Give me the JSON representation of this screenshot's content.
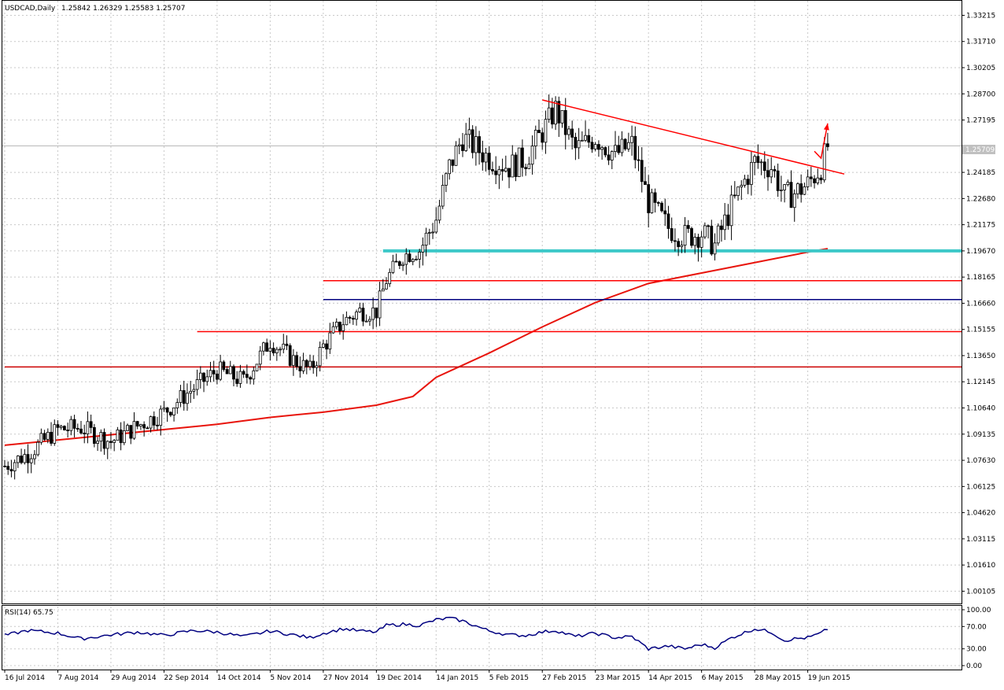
{
  "header": {
    "symbol": "USDCAD,Daily",
    "ohlc": "1.25842 1.26329 1.25583 1.25707"
  },
  "rsi_header": "RSI(14) 65.75",
  "current_price_label": "1.25709",
  "colors": {
    "background": "#ffffff",
    "candle_body": "#000000",
    "ma": "#e8140c",
    "trendline": "#ff0000",
    "support_cyan": "#3cc8c8",
    "level_blue": "#000080",
    "rsi_line": "#000080",
    "grid": "#c8c8c8"
  },
  "chart_data": [
    {
      "type": "candlestick",
      "title": "USDCAD,Daily",
      "y_ticks": [
        "1.33215",
        "1.31710",
        "1.30205",
        "1.28700",
        "1.27195",
        "1.25709",
        "1.24185",
        "1.22680",
        "1.21175",
        "1.19670",
        "1.18165",
        "1.16660",
        "1.15155",
        "1.13650",
        "1.12145",
        "1.10640",
        "1.09135",
        "1.07630",
        "1.06125",
        "1.04620",
        "1.03115",
        "1.01610",
        "1.00105"
      ],
      "x_ticks": [
        "16 Jul 2014",
        "7 Aug 2014",
        "29 Aug 2014",
        "22 Sep 2014",
        "14 Oct 2014",
        "5 Nov 2014",
        "27 Nov 2014",
        "19 Dec 2014",
        "14 Jan 2015",
        "5 Feb 2015",
        "27 Feb 2015",
        "23 Mar 2015",
        "14 Apr 2015",
        "6 May 2015",
        "28 May 2015",
        "19 Jun 2015"
      ],
      "ylim": [
        0.994,
        1.3405
      ],
      "close_path": [
        [
          "16 Jul 2014",
          1.073
        ],
        [
          "25 Jul 2014",
          1.08
        ],
        [
          "7 Aug 2014",
          1.094
        ],
        [
          "18 Aug 2014",
          1.095
        ],
        [
          "29 Aug 2014",
          1.087
        ],
        [
          "10 Sep 2014",
          1.096
        ],
        [
          "22 Sep 2014",
          1.104
        ],
        [
          "3 Oct 2014",
          1.118
        ],
        [
          "14 Oct 2014",
          1.128
        ],
        [
          "24 Oct 2014",
          1.122
        ],
        [
          "5 Nov 2014",
          1.145
        ],
        [
          "14 Nov 2014",
          1.134
        ],
        [
          "21 Nov 2014",
          1.128
        ],
        [
          "27 Nov 2014",
          1.142
        ],
        [
          "5 Dec 2014",
          1.156
        ],
        [
          "12 Dec 2014",
          1.162
        ],
        [
          "19 Dec 2014",
          1.162
        ],
        [
          "24 Dec 2014",
          1.18
        ],
        [
          "31 Dec 2014",
          1.194
        ],
        [
          "7 Jan 2015",
          1.197
        ],
        [
          "14 Jan 2015",
          1.215
        ],
        [
          "20 Jan 2015",
          1.245
        ],
        [
          "26 Jan 2015",
          1.262
        ],
        [
          "5 Feb 2015",
          1.25
        ],
        [
          "13 Feb 2015",
          1.245
        ],
        [
          "20 Feb 2015",
          1.25
        ],
        [
          "27 Feb 2015",
          1.265
        ],
        [
          "5 Mar 2015",
          1.278
        ],
        [
          "13 Mar 2015",
          1.255
        ],
        [
          "23 Mar 2015",
          1.262
        ],
        [
          "31 Mar 2015",
          1.252
        ],
        [
          "7 Apr 2015",
          1.258
        ],
        [
          "14 Apr 2015",
          1.225
        ],
        [
          "22 Apr 2015",
          1.21
        ],
        [
          "29 Apr 2015",
          1.205
        ],
        [
          "6 May 2015",
          1.207
        ],
        [
          "12 May 2015",
          1.2
        ],
        [
          "19 May 2015",
          1.222
        ],
        [
          "28 May 2015",
          1.248
        ],
        [
          "4 Jun 2015",
          1.245
        ],
        [
          "10 Jun 2015",
          1.228
        ],
        [
          "15 Jun 2015",
          1.23
        ],
        [
          "19 Jun 2015",
          1.235
        ],
        [
          "25 Jun 2015",
          1.245
        ],
        [
          "29 Jun 2015",
          1.257
        ]
      ],
      "ma_path": [
        [
          "16 Jul 2014",
          1.085
        ],
        [
          "14 Oct 2014",
          1.097
        ],
        [
          "5 Nov 2014",
          1.101
        ],
        [
          "27 Nov 2014",
          1.104
        ],
        [
          "19 Dec 2014",
          1.108
        ],
        [
          "5 Jan 2015",
          1.113
        ],
        [
          "14 Jan 2015",
          1.124
        ],
        [
          "5 Feb 2015",
          1.138
        ],
        [
          "27 Feb 2015",
          1.153
        ],
        [
          "23 Mar 2015",
          1.167
        ],
        [
          "14 Apr 2015",
          1.178
        ],
        [
          "6 May 2015",
          1.184
        ],
        [
          "28 May 2015",
          1.19
        ],
        [
          "19 Jun 2015",
          1.196
        ],
        [
          "29 Jun 2015",
          1.198
        ]
      ],
      "horizontal_levels": [
        {
          "name": "cyan-support",
          "value": 1.1967,
          "from": "23 Dec 2014",
          "color": "#3cc8c8",
          "width": 4
        },
        {
          "name": "red-level-1",
          "value": 1.1796,
          "from": "27 Nov 2014",
          "color": "#ff0000",
          "width": 1.5
        },
        {
          "name": "blue-level",
          "value": 1.1687,
          "from": "27 Nov 2014",
          "color": "#000080",
          "width": 1.5
        },
        {
          "name": "red-level-2",
          "value": 1.1503,
          "from": "5 Oct 2014",
          "color": "#ff0000",
          "width": 1.5
        },
        {
          "name": "red-level-3",
          "value": 1.13,
          "from": "16 Jul 2014",
          "color": "#cc0000",
          "width": 1.5
        }
      ],
      "trendline": {
        "from": [
          "27 Feb 2015",
          1.2835
        ],
        "to": [
          "5 Jul 2015",
          1.2409
        ]
      },
      "arrow": {
        "points": [
          [
            "23 Jun 2015",
            1.254
          ],
          [
            "25 Jun 2015",
            1.25
          ],
          [
            "29 Jun 2015",
            1.27
          ]
        ]
      }
    },
    {
      "type": "line",
      "title": "RSI(14) 65.75",
      "y_ticks": [
        "100.00",
        "70.00",
        "30.00",
        "0.00"
      ],
      "ylim": [
        0,
        100
      ],
      "values_path": [
        [
          "16 Jul 2014",
          54
        ],
        [
          "25 Jul 2014",
          63
        ],
        [
          "7 Aug 2014",
          58
        ],
        [
          "18 Aug 2014",
          48
        ],
        [
          "29 Aug 2014",
          55
        ],
        [
          "10 Sep 2014",
          60
        ],
        [
          "22 Sep 2014",
          54
        ],
        [
          "3 Oct 2014",
          63
        ],
        [
          "14 Oct 2014",
          60
        ],
        [
          "24 Oct 2014",
          52
        ],
        [
          "5 Nov 2014",
          62
        ],
        [
          "14 Nov 2014",
          55
        ],
        [
          "21 Nov 2014",
          50
        ],
        [
          "27 Nov 2014",
          58
        ],
        [
          "5 Dec 2014",
          66
        ],
        [
          "12 Dec 2014",
          62
        ],
        [
          "19 Dec 2014",
          60
        ],
        [
          "24 Dec 2014",
          72
        ],
        [
          "31 Dec 2014",
          74
        ],
        [
          "7 Jan 2015",
          72
        ],
        [
          "14 Jan 2015",
          82
        ],
        [
          "20 Jan 2015",
          85
        ],
        [
          "26 Jan 2015",
          80
        ],
        [
          "5 Feb 2015",
          62
        ],
        [
          "13 Feb 2015",
          55
        ],
        [
          "20 Feb 2015",
          54
        ],
        [
          "27 Feb 2015",
          60
        ],
        [
          "5 Mar 2015",
          63
        ],
        [
          "13 Mar 2015",
          52
        ],
        [
          "23 Mar 2015",
          58
        ],
        [
          "31 Mar 2015",
          50
        ],
        [
          "7 Apr 2015",
          52
        ],
        [
          "14 Apr 2015",
          30
        ],
        [
          "22 Apr 2015",
          35
        ],
        [
          "29 Apr 2015",
          30
        ],
        [
          "6 May 2015",
          38
        ],
        [
          "12 May 2015",
          32
        ],
        [
          "19 May 2015",
          50
        ],
        [
          "28 May 2015",
          66
        ],
        [
          "4 Jun 2015",
          60
        ],
        [
          "10 Jun 2015",
          45
        ],
        [
          "15 Jun 2015",
          48
        ],
        [
          "19 Jun 2015",
          50
        ],
        [
          "25 Jun 2015",
          58
        ],
        [
          "29 Jun 2015",
          65.75
        ]
      ]
    }
  ]
}
